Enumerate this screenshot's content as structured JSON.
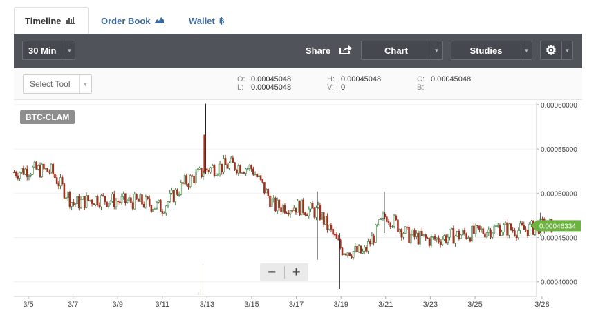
{
  "tabs": [
    {
      "label": "Timeline",
      "icon": "bar-chart-icon"
    },
    {
      "label": "Order Book",
      "icon": "area-chart-icon"
    },
    {
      "label": "Wallet",
      "icon": "bitcoin-icon"
    }
  ],
  "toolbar": {
    "interval": "30 Min",
    "share": "Share",
    "chart": "Chart",
    "studies": "Studies",
    "settings_icon": "gear-icon"
  },
  "tool_select": {
    "value": "Select Tool"
  },
  "ohlc": {
    "o_label": "O:",
    "o": "0.00045048",
    "h_label": "H:",
    "h": "0.00045048",
    "c_label": "C:",
    "c": "0.00045048",
    "l_label": "L:",
    "l": "0.00045048",
    "v_label": "V:",
    "v": "0",
    "b_label": "B:",
    "b": ""
  },
  "symbol": "BTC-CLAM",
  "zoom": {
    "out": "−",
    "in": "+"
  },
  "colors": {
    "up": "#3a7a3a",
    "down": "#a03020",
    "price_tag": "#6db33f",
    "toolbar": "#50535a"
  },
  "chart_data": {
    "type": "candlestick",
    "x_ticks": [
      "3/5",
      "3/7",
      "3/9",
      "3/11",
      "3/13",
      "3/15",
      "3/17",
      "3/19",
      "3/21",
      "3/23",
      "3/25",
      "3/28"
    ],
    "y_ticks": [
      "0.00040000",
      "0.00045000",
      "0.00050000",
      "0.00055000",
      "0.00060000"
    ],
    "y_range": [
      0.000385,
      0.000603
    ],
    "last_price": "0.00046334",
    "close_path": [
      [
        "3/4",
        0.000522
      ],
      [
        "3/5",
        0.000527
      ],
      [
        "3/6",
        0.000525
      ],
      [
        "3/7",
        0.000488
      ],
      [
        "3/8",
        0.000494
      ],
      [
        "3/9",
        0.000491
      ],
      [
        "3/10",
        0.00049
      ],
      [
        "3/11",
        0.000484
      ],
      [
        "3/12",
        0.000512
      ],
      [
        "3/13",
        0.000527
      ],
      [
        "3/14",
        0.000532
      ],
      [
        "3/15",
        0.000528
      ],
      [
        "3/16",
        0.000485
      ],
      [
        "3/17",
        0.000485
      ],
      [
        "3/18",
        0.000478
      ],
      [
        "3/19",
        0.000437
      ],
      [
        "3/20",
        0.000432
      ],
      [
        "3/21",
        0.000476
      ],
      [
        "3/22",
        0.000452
      ],
      [
        "3/23",
        0.000447
      ],
      [
        "3/24",
        0.000452
      ],
      [
        "3/25",
        0.000455
      ],
      [
        "3/26",
        0.000461
      ],
      [
        "3/27",
        0.000458
      ],
      [
        "3/28",
        0.000463
      ]
    ],
    "spikes": [
      {
        "date": "3/13",
        "high": 0.000601,
        "low": 0.000522
      },
      {
        "date": "3/18",
        "high": 0.000502,
        "low": 0.000425
      },
      {
        "date": "3/19",
        "high": 0.000455,
        "low": 0.000392
      },
      {
        "date": "3/21",
        "high": 0.000502,
        "low": 0.000455
      },
      {
        "date": "3/28",
        "high": 0.000478,
        "low": 0.000455
      }
    ]
  }
}
